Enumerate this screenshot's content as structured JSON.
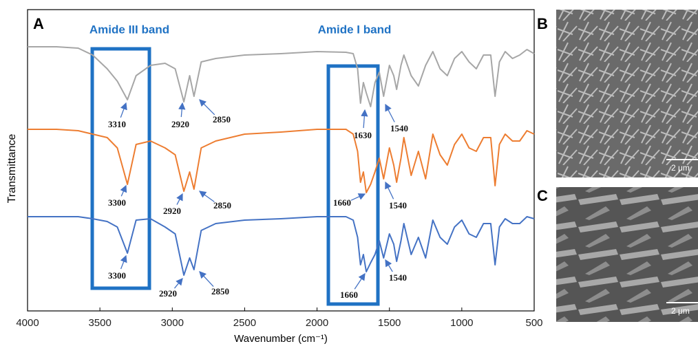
{
  "panels": {
    "a": "A",
    "b": "B",
    "c": "C"
  },
  "chart_data": {
    "type": "line",
    "xlabel": "Wavenumber (cm⁻¹)",
    "ylabel": "Transmittance",
    "band_labels": [
      "Amide III band",
      "Amide I band"
    ],
    "x": [
      4000,
      3800,
      3650,
      3550,
      3450,
      3380,
      3310,
      3250,
      3150,
      3050,
      2980,
      2920,
      2880,
      2850,
      2800,
      2700,
      2500,
      2250,
      2000,
      1800,
      1750,
      1720,
      1700,
      1680,
      1660,
      1630,
      1600,
      1570,
      1540,
      1500,
      1470,
      1450,
      1420,
      1400,
      1350,
      1300,
      1250,
      1200,
      1150,
      1100,
      1050,
      1000,
      950,
      900,
      850,
      800,
      770,
      740,
      700,
      650,
      600,
      550,
      500
    ],
    "xlim": [
      4000,
      500
    ],
    "xticks": [
      4000,
      3500,
      3000,
      2500,
      2000,
      1500,
      1000,
      500
    ],
    "ylim": [
      0,
      438
    ],
    "series": [
      {
        "color": "#a6a6a6",
        "peak_labels": [
          "3310",
          "2920",
          "2850",
          "1630",
          "1540"
        ],
        "values": [
          384,
          384,
          382,
          372,
          352,
          334,
          307,
          342,
          357,
          360,
          352,
          304,
          342,
          312,
          362,
          367,
          372,
          374,
          377,
          376,
          374,
          352,
          302,
          332,
          317,
          297,
          332,
          347,
          312,
          357,
          342,
          322,
          357,
          372,
          342,
          327,
          357,
          377,
          352,
          342,
          367,
          377,
          362,
          352,
          372,
          372,
          312,
          362,
          377,
          367,
          372,
          380,
          374
        ]
      },
      {
        "color": "#ed7d31",
        "peak_labels": [
          "3300",
          "2920",
          "2850",
          "1660",
          "1540"
        ],
        "values": [
          264,
          264,
          262,
          257,
          252,
          237,
          184,
          242,
          247,
          237,
          227,
          174,
          202,
          177,
          237,
          247,
          257,
          260,
          264,
          264,
          257,
          232,
          187,
          202,
          172,
          184,
          202,
          222,
          192,
          237,
          212,
          187,
          222,
          252,
          197,
          232,
          192,
          257,
          227,
          212,
          242,
          257,
          237,
          232,
          252,
          252,
          182,
          242,
          257,
          247,
          247,
          262,
          257
        ]
      },
      {
        "color": "#4472c4",
        "peak_labels": [
          "3300",
          "2920",
          "2850",
          "1660",
          "1540"
        ],
        "values": [
          137,
          137,
          137,
          134,
          130,
          122,
          84,
          132,
          134,
          122,
          112,
          52,
          77,
          60,
          117,
          127,
          132,
          134,
          137,
          137,
          132,
          107,
          67,
          82,
          57,
          70,
          82,
          102,
          77,
          112,
          97,
          72,
          102,
          127,
          82,
          107,
          77,
          132,
          107,
          97,
          122,
          132,
          112,
          107,
          127,
          127,
          67,
          122,
          134,
          127,
          127,
          137,
          134
        ]
      }
    ]
  },
  "images": [
    {
      "scale_bar": "2 μm"
    },
    {
      "scale_bar": "2 μm"
    }
  ]
}
